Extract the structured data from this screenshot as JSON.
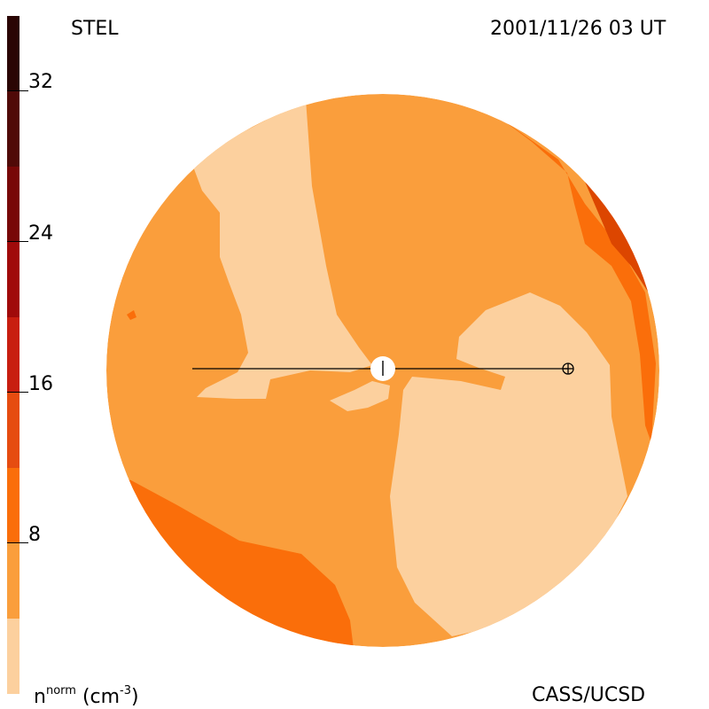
{
  "header": {
    "instrument": "STEL",
    "timestamp": "2001/11/26 03 UT"
  },
  "footer": {
    "credit": "CASS/UCSD",
    "units_base": "n",
    "units_sup": "norm",
    "units_paren": "(cm",
    "units_exp": "-3",
    "units_close": ")"
  },
  "colorbar": {
    "tick_labels": [
      "32",
      "24",
      "16",
      "8"
    ],
    "colors": [
      "#fcd09e",
      "#fa9e3c",
      "#fa6e0a",
      "#e64c10",
      "#c81e10",
      "#a00a0a",
      "#780808",
      "#500a08",
      "#2a0504"
    ]
  },
  "map": {
    "palette": {
      "level1": "#fcd09e",
      "level2": "#fa9e3c",
      "level3": "#fa6e0a",
      "level4": "#dc4600",
      "outline": "#000000",
      "sun": "#ffffff"
    }
  }
}
